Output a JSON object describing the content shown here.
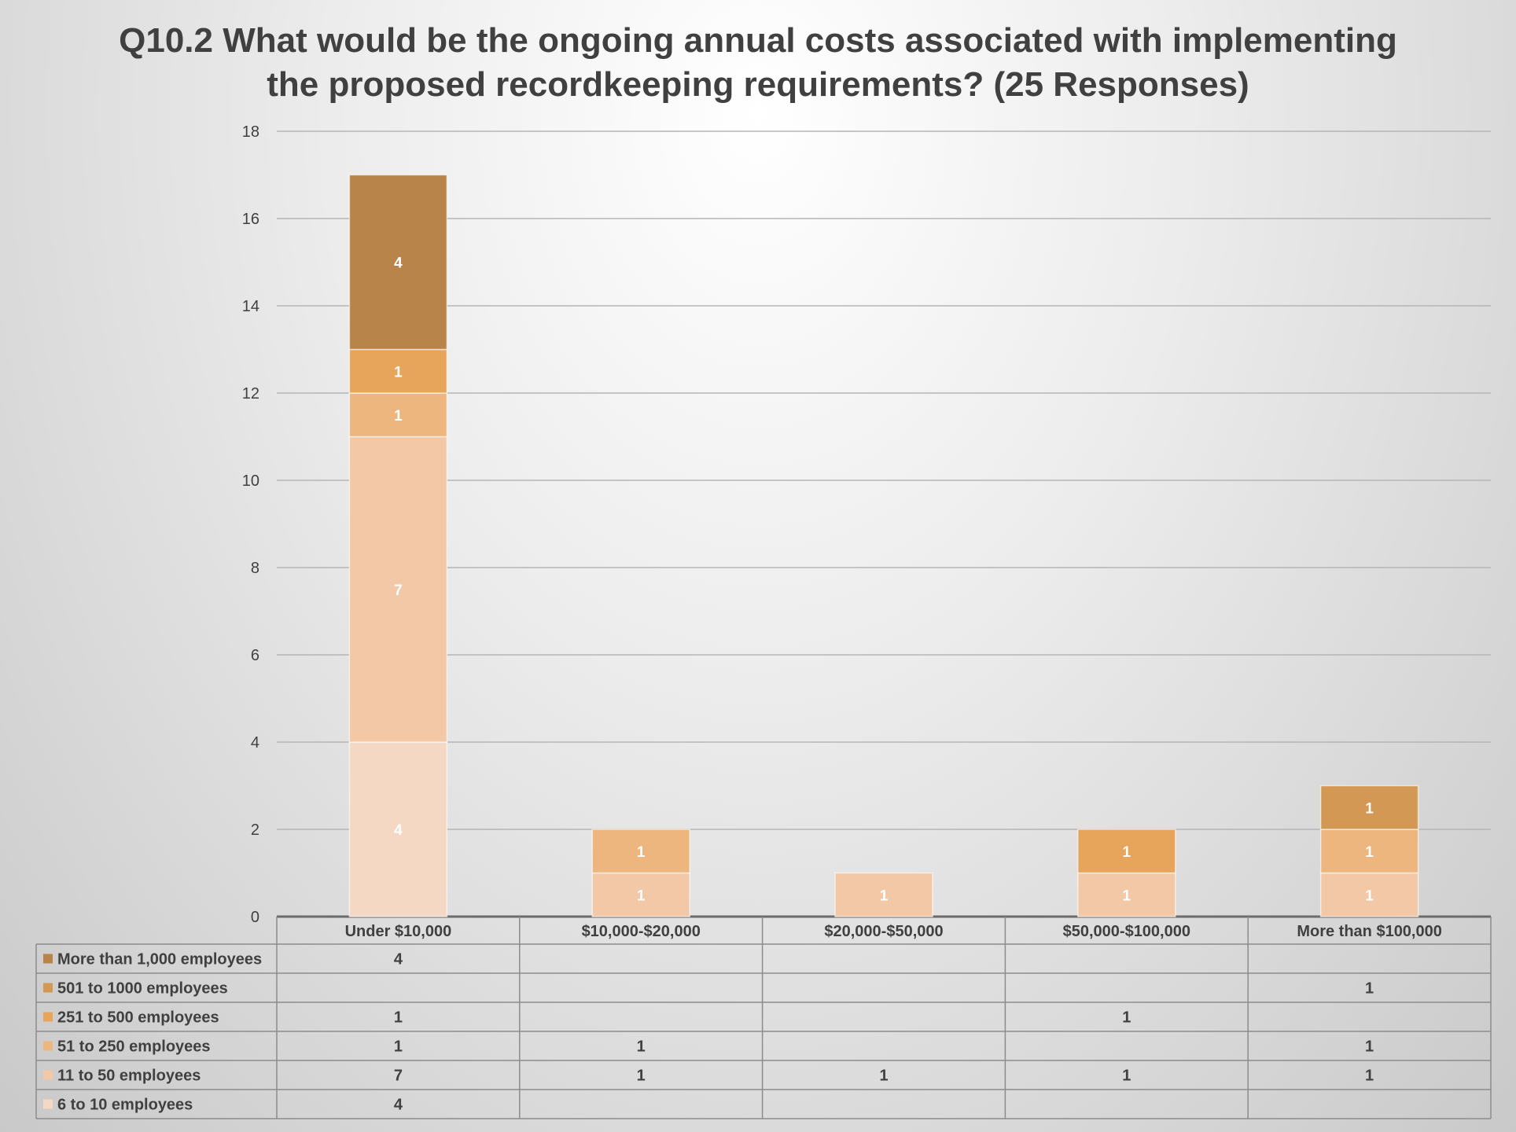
{
  "chart_data": {
    "type": "bar",
    "stacked": true,
    "title": "Q10.2 What would be the ongoing annual costs associated with implementing the proposed recordkeeping requirements? (25 Responses)",
    "title_lines": [
      "Q10.2 What would be the ongoing annual costs associated with implementing",
      "the proposed recordkeeping requirements? (25 Responses)"
    ],
    "categories": [
      "Under $10,000",
      "$10,000-$20,000",
      "$20,000-$50,000",
      "$50,000-$100,000",
      "More than $100,000"
    ],
    "ylim": [
      0,
      18
    ],
    "yticks": [
      "0",
      "2",
      "4",
      "6",
      "8",
      "10",
      "12",
      "14",
      "16",
      "18"
    ],
    "grid": true,
    "legend": "data-table-below",
    "series": [
      {
        "name": "6 to 10 employees",
        "color": "#f4d8c4",
        "values": [
          4,
          null,
          null,
          null,
          null
        ]
      },
      {
        "name": "11 to 50 employees",
        "color": "#f2c8a6",
        "values": [
          7,
          1,
          1,
          1,
          1
        ]
      },
      {
        "name": "51 to 250 employees",
        "color": "#edb67f",
        "values": [
          1,
          1,
          null,
          null,
          1
        ]
      },
      {
        "name": "251 to 500 employees",
        "color": "#e7a55b",
        "values": [
          1,
          null,
          null,
          1,
          null
        ]
      },
      {
        "name": "501 to 1000 employees",
        "color": "#d39853",
        "values": [
          null,
          null,
          null,
          null,
          1
        ]
      },
      {
        "name": "More than 1,000 employees",
        "color": "#b8844a",
        "values": [
          4,
          null,
          null,
          null,
          null
        ]
      }
    ],
    "data_table_rows": [
      {
        "label": "More than 1,000 employees",
        "color": "#b8844a",
        "cells": [
          "4",
          "",
          "",
          "",
          ""
        ]
      },
      {
        "label": "501 to 1000 employees",
        "color": "#d39853",
        "cells": [
          "",
          "",
          "",
          "",
          "1"
        ]
      },
      {
        "label": "251 to 500 employees",
        "color": "#e7a55b",
        "cells": [
          "1",
          "",
          "",
          "1",
          ""
        ]
      },
      {
        "label": "51 to 250 employees",
        "color": "#edb67f",
        "cells": [
          "1",
          "1",
          "",
          "",
          "1"
        ]
      },
      {
        "label": "11 to 50 employees",
        "color": "#f2c8a6",
        "cells": [
          "7",
          "1",
          "1",
          "1",
          "1"
        ]
      },
      {
        "label": "6 to 10 employees",
        "color": "#f4d8c4",
        "cells": [
          "4",
          "",
          "",
          "",
          ""
        ]
      }
    ]
  }
}
